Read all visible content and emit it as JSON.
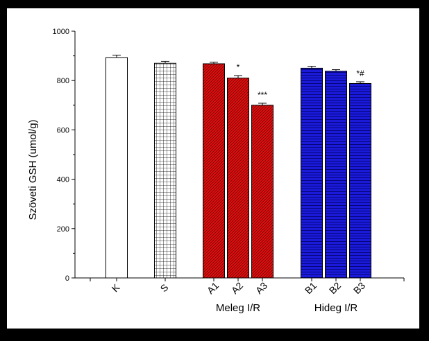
{
  "chart_data": {
    "type": "bar",
    "ylabel": "Szöveti GSH (umol/g)",
    "ylim": [
      0,
      1000
    ],
    "yticks": [
      0,
      200,
      400,
      600,
      800,
      1000
    ],
    "categories": [
      "K",
      "S",
      "A1",
      "A2",
      "A3",
      "B1",
      "B2",
      "B3"
    ],
    "values": [
      893,
      870,
      868,
      810,
      700,
      850,
      838,
      788
    ],
    "errors": [
      10,
      8,
      6,
      10,
      8,
      8,
      6,
      7
    ],
    "annotations": [
      "",
      "",
      "",
      "*",
      "***",
      "",
      "",
      "*#"
    ],
    "groups": [
      {
        "label": "Meleg I/R",
        "categories": [
          "A1",
          "A2",
          "A3"
        ]
      },
      {
        "label": "Hideg I/R",
        "categories": [
          "B1",
          "B2",
          "B3"
        ]
      }
    ],
    "bar_fills": [
      {
        "category": "K",
        "color": "#ffffff",
        "pattern": "none"
      },
      {
        "category": "S",
        "color": "#ffffff",
        "pattern": "grid"
      },
      {
        "category": "A1",
        "color": "#e01010",
        "pattern": "diagonal-hatch"
      },
      {
        "category": "A2",
        "color": "#e01010",
        "pattern": "diagonal-hatch"
      },
      {
        "category": "A3",
        "color": "#e01010",
        "pattern": "diagonal-hatch"
      },
      {
        "category": "B1",
        "color": "#1a1ad8",
        "pattern": "horizontal-lines"
      },
      {
        "category": "B2",
        "color": "#1a1ad8",
        "pattern": "horizontal-lines"
      },
      {
        "category": "B3",
        "color": "#1a1ad8",
        "pattern": "horizontal-lines"
      }
    ],
    "grid": false,
    "legend": "none"
  }
}
